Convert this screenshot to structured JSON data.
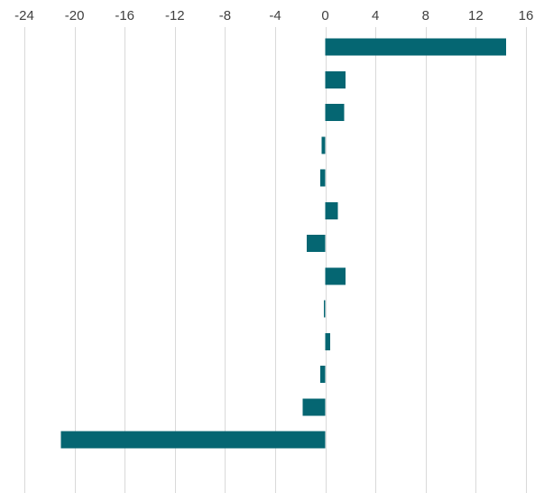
{
  "chart_data": {
    "type": "bar",
    "orientation": "horizontal",
    "categories": [
      "",
      "",
      "",
      "",
      "",
      "",
      "",
      "",
      "",
      "",
      "",
      "",
      ""
    ],
    "values": [
      14.4,
      1.6,
      1.5,
      -0.3,
      -0.4,
      1.0,
      -1.5,
      1.6,
      -0.1,
      0.4,
      -0.4,
      -1.8,
      -21.1
    ],
    "xlim": [
      -24,
      16
    ],
    "x_ticks": [
      "-24",
      "-20",
      "-16",
      "-12",
      "-8",
      "-4",
      "0",
      "4",
      "8",
      "12",
      "16"
    ],
    "x_tick_values": [
      -24,
      -20,
      -16,
      -12,
      -8,
      -4,
      0,
      4,
      8,
      12,
      16
    ],
    "tick_position": "top",
    "grid": true,
    "legend": "none",
    "title": "",
    "xlabel": "",
    "ylabel": "",
    "colors": {
      "bar": "#056672",
      "grid": "#d9d9d9",
      "text": "#404040"
    }
  }
}
